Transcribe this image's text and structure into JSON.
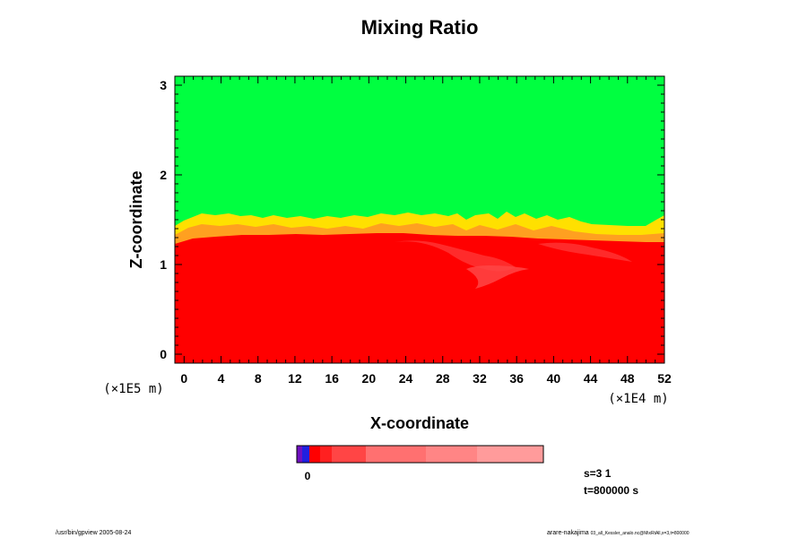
{
  "chart_data": {
    "type": "heatmap",
    "title": "Mixing Ratio",
    "xlabel": "X-coordinate",
    "ylabel": "Z-coordinate",
    "x_scale_label": "(×1E4 m)",
    "y_scale_label": "(×1E5 m)",
    "xlim": [
      -1,
      52
    ],
    "ylim": [
      -0.1,
      3.1
    ],
    "x_ticks": [
      "0",
      "4",
      "8",
      "12",
      "16",
      "20",
      "24",
      "28",
      "32",
      "36",
      "40",
      "44",
      "48",
      "52"
    ],
    "y_ticks": [
      "0",
      "1",
      "2",
      "3"
    ],
    "regions": [
      {
        "name": "upper",
        "color": "#00ff40",
        "z_from": 1.5,
        "z_to": 3.1
      },
      {
        "name": "transition-yellow",
        "color": "#ffe000",
        "z_from": 1.42,
        "z_to": 1.55
      },
      {
        "name": "transition-orange",
        "color": "#ffa020",
        "z_from": 1.3,
        "z_to": 1.45
      },
      {
        "name": "lower",
        "color": "#ff0000",
        "z_from": -0.1,
        "z_to": 1.3
      }
    ],
    "colorbar": {
      "zero_label": "0",
      "segments": [
        "#7010c0",
        "#2020e0",
        "#ff0000",
        "#ff2020",
        "#ff4545",
        "#ff7070",
        "#ff8585",
        "#ff9b9b"
      ]
    },
    "info": {
      "s_label": "s=3 1",
      "t_label": "t=800000 s"
    }
  },
  "footer": {
    "left": "/usr/bin/gpview 2005-08-24",
    "right": "arare-nakajima",
    "right_small": "03_all_Kessler_analo.nc@MixRtAll,x=3,t=800000"
  }
}
